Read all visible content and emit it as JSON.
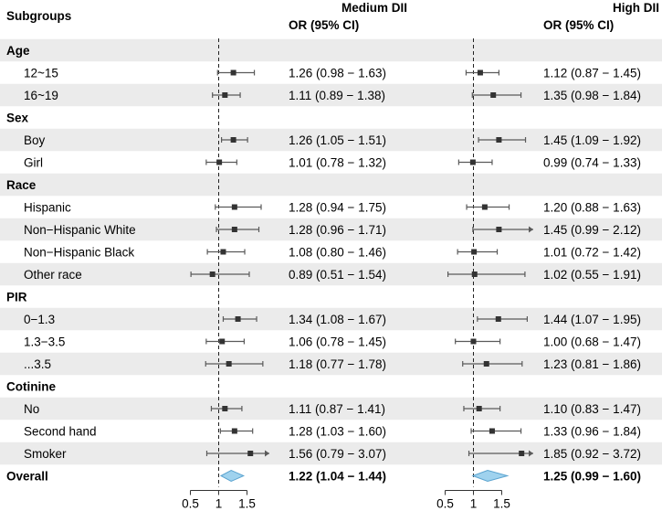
{
  "chart_data": {
    "type": "forest",
    "header": {
      "subgroups_label": "Subgroups",
      "panels": [
        {
          "title": "Medium DII",
          "subtitle": "OR (95% CI)"
        },
        {
          "title": "High DII",
          "subtitle": "OR (95% CI)"
        }
      ]
    },
    "x_axis": {
      "ticks": [
        0.5,
        1,
        1.5
      ],
      "tick_labels": [
        "0.5",
        "1",
        "1.5"
      ],
      "reference": 1
    },
    "rows": [
      {
        "label": "Age",
        "group": true
      },
      {
        "label": "12~15",
        "medium": {
          "or": 1.26,
          "lo": 0.98,
          "hi": 1.63,
          "text": "1.26 (0.98 − 1.63)"
        },
        "high": {
          "or": 1.12,
          "lo": 0.87,
          "hi": 1.45,
          "text": "1.12 (0.87 − 1.45)"
        }
      },
      {
        "label": "16~19",
        "medium": {
          "or": 1.11,
          "lo": 0.89,
          "hi": 1.38,
          "text": "1.11 (0.89 − 1.38)"
        },
        "high": {
          "or": 1.35,
          "lo": 0.98,
          "hi": 1.84,
          "text": "1.35 (0.98 − 1.84)"
        }
      },
      {
        "label": "Sex",
        "group": true
      },
      {
        "label": "Boy",
        "medium": {
          "or": 1.26,
          "lo": 1.05,
          "hi": 1.51,
          "text": "1.26 (1.05 − 1.51)"
        },
        "high": {
          "or": 1.45,
          "lo": 1.09,
          "hi": 1.92,
          "text": "1.45 (1.09 − 1.92)"
        }
      },
      {
        "label": "Girl",
        "medium": {
          "or": 1.01,
          "lo": 0.78,
          "hi": 1.32,
          "text": "1.01 (0.78 − 1.32)"
        },
        "high": {
          "or": 0.99,
          "lo": 0.74,
          "hi": 1.33,
          "text": "0.99 (0.74 − 1.33)"
        }
      },
      {
        "label": "Race",
        "group": true
      },
      {
        "label": "Hispanic",
        "medium": {
          "or": 1.28,
          "lo": 0.94,
          "hi": 1.75,
          "text": "1.28 (0.94 − 1.75)"
        },
        "high": {
          "or": 1.2,
          "lo": 0.88,
          "hi": 1.63,
          "text": "1.20 (0.88 − 1.63)"
        }
      },
      {
        "label": "Non−Hispanic White",
        "medium": {
          "or": 1.28,
          "lo": 0.96,
          "hi": 1.71,
          "text": "1.28 (0.96 − 1.71)"
        },
        "high": {
          "or": 1.45,
          "lo": 0.99,
          "hi": 2.12,
          "text": "1.45 (0.99 − 2.12)"
        }
      },
      {
        "label": "Non−Hispanic Black",
        "medium": {
          "or": 1.08,
          "lo": 0.8,
          "hi": 1.46,
          "text": "1.08 (0.80 − 1.46)"
        },
        "high": {
          "or": 1.01,
          "lo": 0.72,
          "hi": 1.42,
          "text": "1.01 (0.72 − 1.42)"
        }
      },
      {
        "label": "Other race",
        "medium": {
          "or": 0.89,
          "lo": 0.51,
          "hi": 1.54,
          "text": "0.89 (0.51 − 1.54)"
        },
        "high": {
          "or": 1.02,
          "lo": 0.55,
          "hi": 1.91,
          "text": "1.02 (0.55 − 1.91)"
        }
      },
      {
        "label": "PIR",
        "group": true
      },
      {
        "label": "0−1.3",
        "medium": {
          "or": 1.34,
          "lo": 1.08,
          "hi": 1.67,
          "text": "1.34 (1.08 − 1.67)"
        },
        "high": {
          "or": 1.44,
          "lo": 1.07,
          "hi": 1.95,
          "text": "1.44 (1.07 − 1.95)"
        }
      },
      {
        "label": "1.3−3.5",
        "medium": {
          "or": 1.06,
          "lo": 0.78,
          "hi": 1.45,
          "text": "1.06 (0.78 − 1.45)"
        },
        "high": {
          "or": 1.0,
          "lo": 0.68,
          "hi": 1.47,
          "text": "1.00 (0.68 − 1.47)"
        }
      },
      {
        "label": "...3.5",
        "medium": {
          "or": 1.18,
          "lo": 0.77,
          "hi": 1.78,
          "text": "1.18 (0.77 − 1.78)"
        },
        "high": {
          "or": 1.23,
          "lo": 0.81,
          "hi": 1.86,
          "text": "1.23 (0.81 − 1.86)"
        }
      },
      {
        "label": "Cotinine",
        "group": true
      },
      {
        "label": "No",
        "medium": {
          "or": 1.11,
          "lo": 0.87,
          "hi": 1.41,
          "text": "1.11 (0.87 − 1.41)"
        },
        "high": {
          "or": 1.1,
          "lo": 0.83,
          "hi": 1.47,
          "text": "1.10 (0.83 − 1.47)"
        }
      },
      {
        "label": "Second hand",
        "medium": {
          "or": 1.28,
          "lo": 1.03,
          "hi": 1.6,
          "text": "1.28 (1.03 − 1.60)"
        },
        "high": {
          "or": 1.33,
          "lo": 0.96,
          "hi": 1.84,
          "text": "1.33 (0.96 − 1.84)"
        }
      },
      {
        "label": "Smoker",
        "medium": {
          "or": 1.56,
          "lo": 0.79,
          "hi": 3.07,
          "text": "1.56 (0.79 − 3.07)"
        },
        "high": {
          "or": 1.85,
          "lo": 0.92,
          "hi": 3.72,
          "text": "1.85 (0.92 − 3.72)"
        }
      },
      {
        "label": "Overall",
        "overall": true,
        "medium": {
          "or": 1.22,
          "lo": 1.04,
          "hi": 1.44,
          "text": "1.22 (1.04 − 1.44)"
        },
        "high": {
          "or": 1.25,
          "lo": 0.99,
          "hi": 1.6,
          "text": "1.25 (0.99 − 1.60)"
        }
      }
    ],
    "colors": {
      "band": "#ebebeb",
      "ci_line": "#5a5a5a",
      "point": "#333333",
      "diamond_fill": "#9fd2ee",
      "diamond_stroke": "#5aa3cf"
    }
  }
}
